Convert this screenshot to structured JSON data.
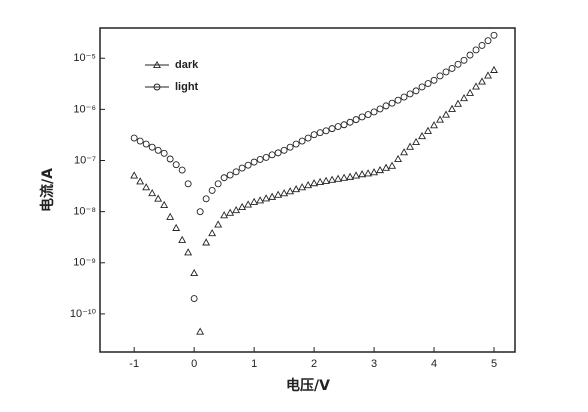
{
  "chart_data": {
    "type": "scatter",
    "x_label": "电压/V",
    "y_label": "电流/A",
    "x": [
      -1,
      -0.9,
      -0.8,
      -0.7,
      -0.6,
      -0.5,
      -0.4,
      -0.3,
      -0.2,
      -0.1,
      0,
      0.1,
      0.2,
      0.3,
      0.4,
      0.5,
      0.6,
      0.7,
      0.8,
      0.9,
      1,
      1.1,
      1.2,
      1.3,
      1.4,
      1.5,
      1.6,
      1.7,
      1.8,
      1.9,
      2,
      2.1,
      2.2,
      2.3,
      2.4,
      2.5,
      2.6,
      2.7,
      2.8,
      2.9,
      3,
      3.1,
      3.2,
      3.3,
      3.4,
      3.5,
      3.6,
      3.7,
      3.8,
      3.9,
      4,
      4.1,
      4.2,
      4.3,
      4.4,
      4.5,
      4.6,
      4.7,
      4.8,
      4.9,
      5
    ],
    "series": [
      {
        "name": "dark",
        "color": "#222222",
        "marker": "triangle",
        "values": [
          5.1e-08,
          3.9e-08,
          3e-08,
          2.3e-08,
          1.8e-08,
          1.35e-08,
          7.9e-09,
          4.8e-09,
          2.8e-09,
          1.6e-09,
          6.3e-10,
          4.5e-11,
          2.5e-09,
          3.8e-09,
          5.6e-09,
          8.5e-09,
          9.5e-09,
          1.07e-08,
          1.23e-08,
          1.38e-08,
          1.55e-08,
          1.66e-08,
          1.82e-08,
          1.95e-08,
          2.14e-08,
          2.29e-08,
          2.5e-08,
          2.75e-08,
          3e-08,
          3.3e-08,
          3.6e-08,
          3.8e-08,
          4e-08,
          4.2e-08,
          4.4e-08,
          4.6e-08,
          4.8e-08,
          5.1e-08,
          5.4e-08,
          5.6e-08,
          5.9e-08,
          6.5e-08,
          7.2e-08,
          7.9e-08,
          1.07e-07,
          1.45e-07,
          1.86e-07,
          2.3e-07,
          3e-07,
          3.8e-07,
          4.9e-07,
          6.3e-07,
          7.9e-07,
          1.02e-06,
          1.29e-06,
          1.66e-06,
          2.1e-06,
          2.8e-06,
          3.5e-06,
          4.6e-06,
          5.9e-06
        ]
      },
      {
        "name": "light",
        "color": "#222222",
        "marker": "circle",
        "values": [
          2.75e-07,
          2.4e-07,
          2.1e-07,
          1.82e-07,
          1.58e-07,
          1.38e-07,
          1.07e-07,
          8.3e-08,
          6.5e-08,
          3.5e-08,
          2e-10,
          1e-08,
          1.78e-08,
          2.6e-08,
          3.5e-08,
          4.6e-08,
          5.2e-08,
          6e-08,
          7.1e-08,
          8.1e-08,
          9.3e-08,
          1.05e-07,
          1.15e-07,
          1.29e-07,
          1.41e-07,
          1.58e-07,
          1.82e-07,
          2.1e-07,
          2.4e-07,
          2.75e-07,
          3.2e-07,
          3.5e-07,
          3.8e-07,
          4.2e-07,
          4.6e-07,
          5e-07,
          5.6e-07,
          6.3e-07,
          7.1e-07,
          7.9e-07,
          8.9e-07,
          1.02e-06,
          1.17e-06,
          1.32e-06,
          1.51e-06,
          1.74e-06,
          2e-06,
          2.3e-06,
          2.75e-06,
          3.2e-06,
          3.7e-06,
          4.5e-06,
          5.4e-06,
          6.3e-06,
          7.6e-06,
          9.1e-06,
          1.15e-05,
          1.45e-05,
          1.78e-05,
          2.2e-05,
          2.8e-05
        ]
      }
    ],
    "xlim": [
      -1.57,
      5.35
    ],
    "xticks": [
      -1,
      0,
      1,
      2,
      3,
      4,
      5
    ],
    "ylim": [
      1.8e-11,
      3.9e-05
    ],
    "y_log": true,
    "yticks": [
      {
        "value": 1e-10,
        "label": "10⁻¹⁰"
      },
      {
        "value": 1e-09,
        "label": "10⁻⁹"
      },
      {
        "value": 1e-08,
        "label": "10⁻⁸"
      },
      {
        "value": 1e-07,
        "label": "10⁻⁷"
      },
      {
        "value": 1e-06,
        "label": "10⁻⁶"
      },
      {
        "value": 1e-05,
        "label": "10⁻⁵"
      }
    ],
    "legend": "upper left"
  }
}
